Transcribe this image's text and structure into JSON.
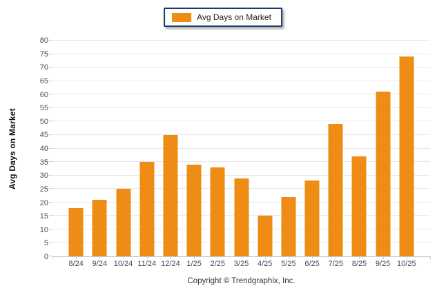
{
  "legend": {
    "label": "Avg Days on Market",
    "swatch_color": "#EF8C15"
  },
  "footer": "Copyright © Trendgraphix, Inc.",
  "chart_data": {
    "type": "bar",
    "title": "",
    "categories": [
      "8/24",
      "9/24",
      "10/24",
      "11/24",
      "12/24",
      "1/25",
      "2/25",
      "3/25",
      "4/25",
      "5/25",
      "6/25",
      "7/25",
      "8/25",
      "9/25",
      "10/25"
    ],
    "values": [
      18,
      21,
      25,
      35,
      45,
      34,
      33,
      29,
      15,
      22,
      28,
      49,
      37,
      61,
      74
    ],
    "xlabel": "",
    "ylabel": "Avg Days on Market",
    "ylim": [
      0,
      80
    ],
    "ytick_step": 5,
    "bar_color": "#EF8C15",
    "grid": "horizontal",
    "legend_position": "top-center",
    "legend_entries": [
      "Avg Days on Market"
    ]
  }
}
